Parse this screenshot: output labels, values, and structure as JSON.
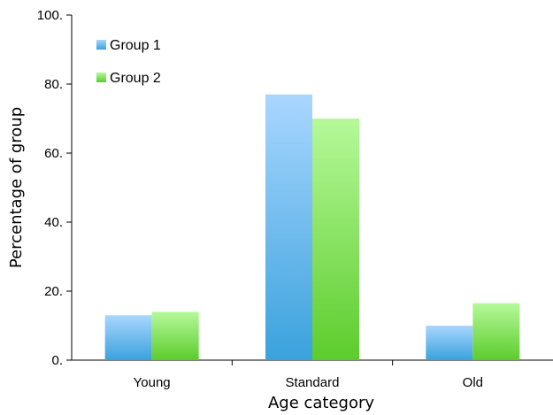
{
  "chart_data": {
    "type": "bar",
    "categories": [
      "Young",
      "Standard",
      "Old"
    ],
    "series": [
      {
        "name": "Group 1",
        "values": [
          13,
          77,
          10
        ],
        "color_top": "#a9d6ff",
        "color_bottom": "#3aa2dc"
      },
      {
        "name": "Group 2",
        "values": [
          14,
          70,
          16.5
        ],
        "color_top": "#b6f99a",
        "color_bottom": "#5ccc2c"
      }
    ],
    "xlabel": "Age category",
    "ylabel": "Percentage of group",
    "ylim": [
      0,
      100
    ],
    "yticks": [
      0,
      20,
      40,
      60,
      80,
      100
    ],
    "ytick_labels": [
      "0.",
      "20.",
      "40.",
      "60.",
      "80.",
      "100."
    ],
    "legend_position": "top-left",
    "grid": false
  }
}
